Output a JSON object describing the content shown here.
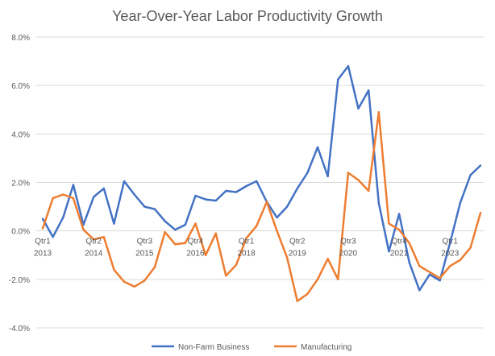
{
  "chart_data": {
    "type": "line",
    "title": "Year-Over-Year Labor Productivity Growth",
    "xlabel": "",
    "ylabel": "",
    "ylim": [
      -4,
      8
    ],
    "yticks": [
      "8.0%",
      "6.0%",
      "4.0%",
      "2.0%",
      "0.0%",
      "-2.0%",
      "-4.0%"
    ],
    "ytick_values": [
      8,
      6,
      4,
      2,
      0,
      -2,
      -4
    ],
    "grid": true,
    "legend_position": "bottom",
    "x_tick_labels": [
      {
        "index": 0,
        "quarter": "Qtr1",
        "year": "2013"
      },
      {
        "index": 5,
        "quarter": "Qtr2",
        "year": "2014"
      },
      {
        "index": 10,
        "quarter": "Qtr3",
        "year": "2015"
      },
      {
        "index": 15,
        "quarter": "Qtr4",
        "year": "2016"
      },
      {
        "index": 20,
        "quarter": "Qtr1",
        "year": "2018"
      },
      {
        "index": 25,
        "quarter": "Qtr2",
        "year": "2019"
      },
      {
        "index": 30,
        "quarter": "Qtr3",
        "year": "2020"
      },
      {
        "index": 35,
        "quarter": "Qtr4",
        "year": "2021"
      },
      {
        "index": 40,
        "quarter": "Qtr1",
        "year": "2023"
      }
    ],
    "categories": [
      "2013 Q1",
      "2013 Q2",
      "2013 Q3",
      "2013 Q4",
      "2014 Q1",
      "2014 Q2",
      "2014 Q3",
      "2014 Q4",
      "2015 Q1",
      "2015 Q2",
      "2015 Q3",
      "2015 Q4",
      "2016 Q1",
      "2016 Q2",
      "2016 Q3",
      "2016 Q4",
      "2017 Q1",
      "2017 Q2",
      "2017 Q3",
      "2017 Q4",
      "2018 Q1",
      "2018 Q2",
      "2018 Q3",
      "2018 Q4",
      "2019 Q1",
      "2019 Q2",
      "2019 Q3",
      "2019 Q4",
      "2020 Q1",
      "2020 Q2",
      "2020 Q3",
      "2020 Q4",
      "2021 Q1",
      "2021 Q2",
      "2021 Q3",
      "2021 Q4",
      "2022 Q1",
      "2022 Q2",
      "2022 Q3",
      "2022 Q4",
      "2023 Q1",
      "2023 Q2",
      "2023 Q3",
      "2023 Q4"
    ],
    "series": [
      {
        "name": "Non-Farm Business",
        "color": "#4472C4",
        "values": [
          0.5,
          -0.25,
          0.55,
          1.9,
          0.25,
          1.4,
          1.75,
          0.3,
          2.05,
          1.5,
          1.0,
          0.9,
          0.4,
          0.05,
          0.25,
          1.45,
          1.3,
          1.25,
          1.65,
          1.6,
          1.85,
          2.05,
          1.2,
          0.55,
          1.0,
          1.75,
          2.4,
          3.45,
          2.25,
          6.25,
          6.8,
          5.05,
          5.8,
          1.15,
          -0.85,
          0.7,
          -1.3,
          -2.45,
          -1.8,
          -2.05,
          -0.5,
          1.15,
          2.3,
          2.7
        ]
      },
      {
        "name": "Manufacturing",
        "color": "#ED7D31",
        "values": [
          0.1,
          1.35,
          1.5,
          1.35,
          0.05,
          -0.35,
          -0.25,
          -1.6,
          -2.1,
          -2.3,
          -2.05,
          -1.5,
          -0.05,
          -0.55,
          -0.5,
          0.3,
          -1.0,
          -0.1,
          -1.85,
          -1.4,
          -0.3,
          0.2,
          1.2,
          0.0,
          -1.1,
          -2.9,
          -2.6,
          -2.0,
          -1.15,
          -2.0,
          2.4,
          2.1,
          1.65,
          4.9,
          0.3,
          0.05,
          -0.5,
          -1.45,
          -1.7,
          -1.95,
          -1.45,
          -1.2,
          -0.7,
          0.75
        ]
      }
    ]
  }
}
